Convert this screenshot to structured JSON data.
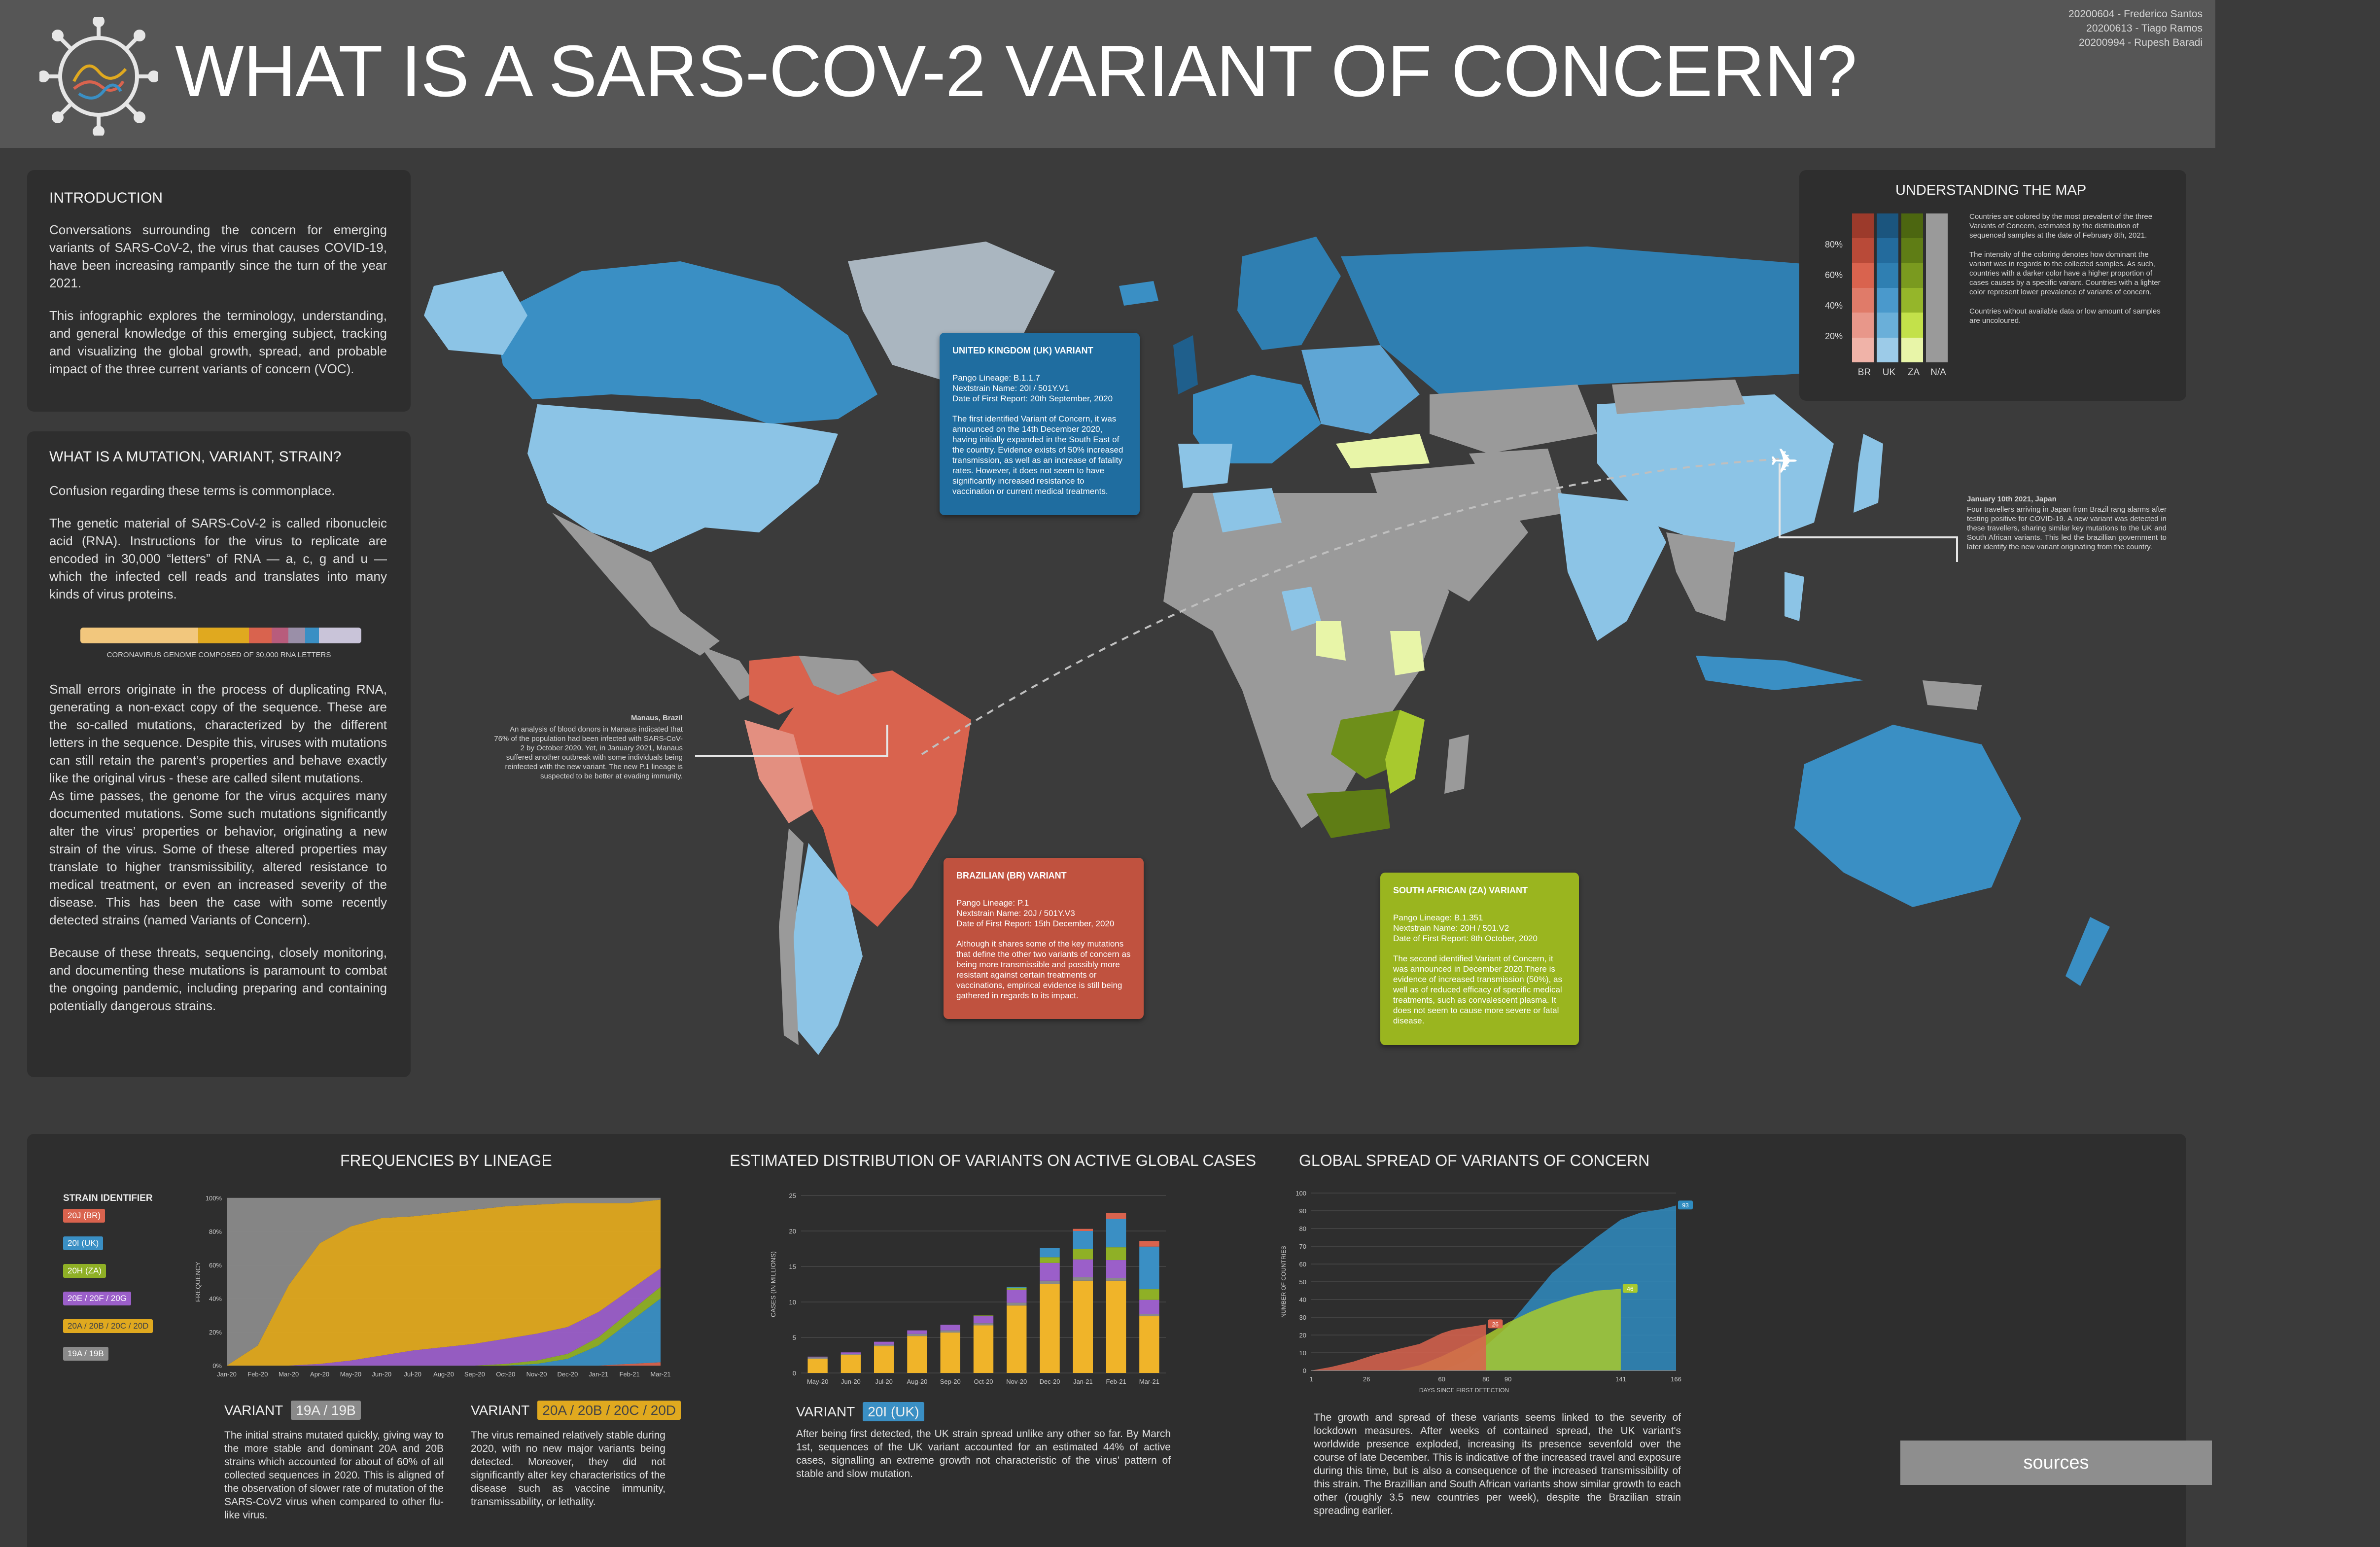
{
  "header": {
    "title": "WHAT IS A SARS-COV-2 VARIANT OF CONCERN?",
    "authors": [
      "20200604 - Frederico Santos",
      "20200613 - Tiago Ramos",
      "20200994 - Rupesh Baradi"
    ]
  },
  "intro": {
    "heading": "INTRODUCTION",
    "p1": "Conversations surrounding the concern for emerging variants of SARS-CoV-2, the virus that causes COVID-19, have been increasing rampantly since the turn of the year 2021.",
    "p2": "This infographic explores the terminology, understanding, and general knowledge of this emerging subject, tracking and visualizing the global growth, spread, and probable impact of the three current variants of concern (VOC)."
  },
  "mutation": {
    "heading": "WHAT IS A MUTATION, VARIANT, STRAIN?",
    "p1": "Confusion regarding these terms is commonplace.",
    "p2": "The genetic material of SARS-CoV-2 is called ribonucleic acid (RNA). Instructions for the virus to replicate are encoded in 30,000 “letters” of RNA — a, c, g and u — which the infected cell reads and translates into many kinds of virus proteins.",
    "genome_caption": "CORONAVIRUS GENOME COMPOSED OF 30,000 RNA LETTERS",
    "p3": "Small errors originate in the process of duplicating RNA, generating a non-exact copy of the sequence. These are the so-called mutations, characterized by the different letters in the sequence. Despite this, viruses with mutations can still retain the parent’s properties and behave exactly like the original virus - these are called silent mutations.",
    "p4": "As time passes, the genome for the virus acquires many documented mutations. Some such mutations significantly alter the virus’ properties or behavior, originating a new strain of the virus. Some of these altered properties may translate to higher transmissibility, altered resistance to medical treatment, or even an increased severity of the disease. This has been the case with some recently detected strains (named Variants of Concern).",
    "p5": "Because of these threats, sequencing, closely monitoring, and documenting these mutations is paramount to combat the ongoing pandemic, including preparing and containing potentially dangerous strains."
  },
  "map": {
    "understanding_title": "UNDERSTANDING THE MAP",
    "legend_levels": [
      "80%",
      "60%",
      "40%",
      "20%"
    ],
    "legend_columns": [
      "BR",
      "UK",
      "ZA",
      "N/A"
    ],
    "legend_text1": "Countries are colored by the most prevalent of the three Variants of Concern, estimated by the distribution of sequenced samples at the date of February 8th, 2021.",
    "legend_text2": "The intensity of the coloring denotes how dominant the variant was in regards to the collected samples. As such, countries with a darker color have a higher proportion of cases causes by a specific variant. Countries with a lighter color represent lower prevalence of variants of concern.",
    "legend_text3": "Countries without available data or low amount of samples are uncoloured.",
    "colors": {
      "br": "#d9634e",
      "uk": "#3a8fc4",
      "za": "#8fb026",
      "na": "#9a9a9a",
      "ocean": "#3b3b3b"
    },
    "uk_callout": {
      "title": "UNITED KINGDOM (UK) VARIANT",
      "lineage": "Pango Lineage: B.1.1.7",
      "nextstrain": "Nextstrain Name: 20I / 501Y.V1",
      "date": "Date of First Report:  20th September, 2020",
      "body": "The first identified Variant of Concern, it was announced on the 14th December 2020, having initially expanded in the South East of the country. Evidence exists of 50% increased transmission, as well as an increase of fatality rates. However, it does not seem to have significantly increased resistance to vaccination or current medical treatments."
    },
    "br_callout": {
      "title": "BRAZILIAN (BR) VARIANT",
      "lineage": "Pango Lineage: P.1",
      "nextstrain": "Nextstrain Name: 20J / 501Y.V3",
      "date": "Date of First Report:  15th December, 2020",
      "body": "Although it shares some of the key mutations that define the other two variants of concern as being more transmissible and possibly more resistant against certain treatments or vaccinations, empirical evidence is still being gathered in regards to its impact."
    },
    "za_callout": {
      "title": "SOUTH AFRICAN (ZA) VARIANT",
      "lineage": "Pango Lineage: B.1.351",
      "nextstrain": "Nextstrain Name: 20H / 501.V2",
      "date": "Date of First Report:  8th October, 2020",
      "body": "The second identified Variant of Concern, it was announced in December 2020.There is evidence of increased transmission (50%), as well as of reduced efficacy of specific medical treatments, such as convalescent plasma. It does not seem to cause more severe or fatal disease."
    },
    "manaus": {
      "title": "Manaus, Brazil",
      "body": "An analysis of blood donors in Manaus indicated that 76% of the population had been infected with SARS-CoV-2 by October 2020. Yet, in January 2021, Manaus suffered another outbreak with some individuals being reinfected with the new variant. The new P.1 lineage is suspected to be better at evading immunity."
    },
    "japan": {
      "title": "January 10th 2021, Japan",
      "body": "Four travellers arriving in Japan from Brazil rang alarms after testing positive for COVID-19. A new variant was detected in these travellers, sharing similar key mutations to the UK and South African variants. This led the brazillian government to later identify the new variant originating from the country."
    }
  },
  "freq": {
    "title": "FREQUENCIES BY LINEAGE",
    "legend_title": "STRAIN IDENTIFIER",
    "ylabel": "FREQUENCY",
    "variant_label": "VARIANT",
    "chip1": "19A / 19B",
    "chip2": "20A / 20B / 20C / 20D",
    "text1": "The initial strains mutated quickly, giving way to the more stable and dominant 20A and 20B strains which accounted for about of 60% of all collected sequences in 2020. This is aligned of the observation of slower rate of mutation of the SARS-CoV2 virus when compared to other flu-like virus.",
    "text2": "The virus remained relatively stable during 2020, with no new major variants being detected. Moreover, they did not significantly alter key characteristics of the disease such as vaccine immunity, transmissability, or lethality."
  },
  "dist": {
    "title": "ESTIMATED DISTRIBUTION OF VARIANTS ON ACTIVE GLOBAL CASES",
    "ylabel": "CASES (IN MILLIONS)",
    "variant_label": "VARIANT",
    "chip": "20I (UK)",
    "text": "After being first detected, the UK strain spread unlike any other so far. By March 1st, sequences of the UK variant accounted for an estimated 44% of active cases, signalling an extreme growth not characteristic of the virus’ pattern of stable and slow mutation."
  },
  "spread": {
    "title": "GLOBAL SPREAD OF VARIANTS OF CONCERN",
    "ylabel": "NUMBER OF COUNTRIES",
    "xlabel": "DAYS SINCE FIRST DETECTION",
    "text": "The growth and spread of these variants seems linked to the severity of lockdown measures. After weeks of contained spread, the UK variant's worldwide presence exploded, increasing its presence sevenfold over the course of late December. This is indicative of the increased travel and exposure during this time, but is also a consequence of the increased transmissibility of this strain. The Brazillian and South African variants show similar growth to each other (roughly 3.5 new countries per week), despite the Brazilian strain spreading earlier."
  },
  "sources_label": "sources",
  "chart_data": [
    {
      "type": "area",
      "title": "FREQUENCIES BY LINEAGE",
      "ylabel": "FREQUENCY",
      "x": [
        "Jan-20",
        "Feb-20",
        "Mar-20",
        "Apr-20",
        "May-20",
        "Jun-20",
        "Jul-20",
        "Aug-20",
        "Sep-20",
        "Oct-20",
        "Nov-20",
        "Dec-20",
        "Jan-21",
        "Feb-21",
        "Mar-21"
      ],
      "yticks": [
        "0%",
        "20%",
        "40%",
        "60%",
        "80%",
        "100%"
      ],
      "ylim": [
        0,
        100
      ],
      "series": [
        {
          "name": "20J (BR)",
          "color": "#d9634e",
          "values": [
            0,
            0,
            0,
            0,
            0,
            0,
            0,
            0,
            0,
            0,
            0,
            0,
            0,
            1,
            2
          ]
        },
        {
          "name": "20I (UK)",
          "color": "#3a8fc4",
          "values": [
            0,
            0,
            0,
            0,
            0,
            0,
            0,
            0,
            0,
            0,
            1,
            4,
            12,
            25,
            38
          ]
        },
        {
          "name": "20H (ZA)",
          "color": "#8fb026",
          "values": [
            0,
            0,
            0,
            0,
            0,
            0,
            0,
            0,
            0,
            1,
            2,
            3,
            5,
            6,
            7
          ]
        },
        {
          "name": "20E / 20F / 20G",
          "color": "#9b5fc9",
          "values": [
            0,
            0,
            0,
            1,
            3,
            6,
            9,
            11,
            13,
            15,
            16,
            16,
            15,
            13,
            11
          ]
        },
        {
          "name": "20A / 20B / 20C / 20D",
          "color": "#e0a91f",
          "values": [
            0,
            12,
            48,
            72,
            80,
            82,
            80,
            80,
            80,
            79,
            77,
            74,
            65,
            52,
            41
          ]
        },
        {
          "name": "19A / 19B",
          "color": "#8a8a8a",
          "values": [
            100,
            88,
            52,
            27,
            17,
            12,
            11,
            9,
            7,
            5,
            4,
            3,
            3,
            3,
            1
          ]
        }
      ]
    },
    {
      "type": "bar",
      "title": "ESTIMATED DISTRIBUTION OF VARIANTS ON ACTIVE GLOBAL CASES",
      "ylabel": "CASES (IN MILLIONS)",
      "ylim": [
        0,
        25
      ],
      "yticks": [
        0,
        5,
        10,
        15,
        20,
        25
      ],
      "categories": [
        "May-20",
        "Jun-20",
        "Jul-20",
        "Aug-20",
        "Sep-20",
        "Oct-20",
        "Nov-20",
        "Dec-20",
        "Jan-21",
        "Feb-21",
        "Mar-21"
      ],
      "bar_labels": [
        "May-20",
        "Jun-20",
        "Jul-20",
        "Aug-20",
        "Sep-20",
        "Oct-20",
        "Nov-20",
        "Dec-20",
        "Jan-21",
        "Feb-21",
        "Mar-21"
      ],
      "series": [
        {
          "name": "20A / 20B / 20C / 20D",
          "color": "#f0b429",
          "values": [
            2.0,
            2.5,
            3.8,
            5.2,
            5.7,
            6.7,
            9.5,
            12.5,
            13.0,
            13.0,
            8.0
          ]
        },
        {
          "name": "19A / 19B",
          "color": "#8a8a8a",
          "values": [
            0.2,
            0.2,
            0.2,
            0.3,
            0.3,
            0.3,
            0.4,
            0.5,
            0.5,
            0.4,
            0.3
          ]
        },
        {
          "name": "20E / 20F / 20G",
          "color": "#9b5fc9",
          "values": [
            0.1,
            0.2,
            0.4,
            0.5,
            0.8,
            1.0,
            1.8,
            2.5,
            2.5,
            2.5,
            2.0
          ]
        },
        {
          "name": "20H (ZA)",
          "color": "#8fb026",
          "values": [
            0,
            0,
            0,
            0,
            0,
            0.1,
            0.3,
            0.8,
            1.5,
            1.8,
            1.5
          ]
        },
        {
          "name": "20I (UK)",
          "color": "#3a8fc4",
          "values": [
            0,
            0,
            0,
            0,
            0,
            0,
            0.1,
            1.3,
            2.5,
            4.0,
            6.0
          ]
        },
        {
          "name": "20J (BR)",
          "color": "#d9634e",
          "values": [
            0,
            0,
            0,
            0,
            0,
            0,
            0,
            0,
            0.3,
            0.8,
            0.8
          ]
        }
      ]
    },
    {
      "type": "area",
      "title": "GLOBAL SPREAD OF VARIANTS OF CONCERN",
      "xlabel": "DAYS SINCE FIRST DETECTION",
      "ylabel": "NUMBER OF COUNTRIES",
      "xticks": [
        1,
        26,
        60,
        80,
        90,
        141,
        166
      ],
      "yticks": [
        0,
        10,
        20,
        30,
        40,
        50,
        60,
        70,
        80,
        90,
        100
      ],
      "xlim": [
        1,
        166
      ],
      "ylim": [
        0,
        100
      ],
      "series": [
        {
          "name": "20J (BR)",
          "color": "#d9634e",
          "end_label": "26",
          "x": [
            1,
            10,
            20,
            30,
            40,
            50,
            55,
            60,
            65,
            70,
            75,
            80
          ],
          "y": [
            0,
            2,
            5,
            9,
            12,
            15,
            18,
            21,
            23,
            24,
            25,
            26
          ]
        },
        {
          "name": "20H (ZA)",
          "color": "#a8c92e",
          "end_label": "46",
          "x": [
            40,
            50,
            60,
            70,
            80,
            90,
            100,
            110,
            120,
            130,
            141
          ],
          "y": [
            0,
            3,
            8,
            14,
            20,
            27,
            33,
            38,
            42,
            45,
            46
          ]
        },
        {
          "name": "20I (UK)",
          "color": "#2f8bbf",
          "end_label": "93",
          "x": [
            60,
            70,
            80,
            90,
            100,
            110,
            120,
            130,
            141,
            150,
            160,
            166
          ],
          "y": [
            0,
            5,
            14,
            25,
            40,
            55,
            65,
            75,
            85,
            89,
            91,
            93
          ]
        }
      ]
    }
  ]
}
